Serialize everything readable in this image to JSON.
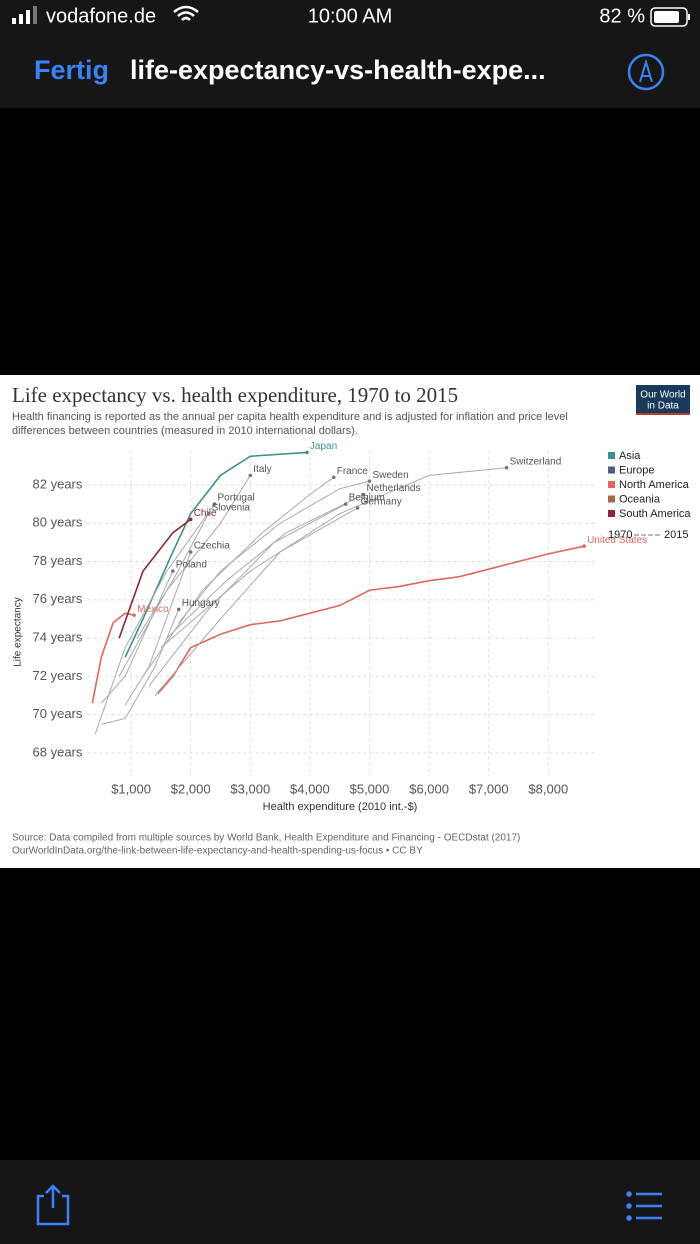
{
  "status_bar": {
    "carrier": "vodafone.de",
    "time": "10:00 AM",
    "battery": "82 %"
  },
  "nav_bar": {
    "done": "Fertig",
    "title": "life-expectancy-vs-health-expe..."
  },
  "chart_data": {
    "type": "line",
    "title": "Life expectancy vs. health expenditure, 1970 to 2015",
    "subtitle": [
      "Health financing is reported as the annual per capita health expenditure and is adjusted for inflation and price level",
      "differences between countries (measured in 2010 international dollars)."
    ],
    "logo": [
      "Our World",
      "in Data"
    ],
    "x_label": "Health expenditure (2010 int.-$)",
    "y_label": "Life expectancy",
    "source": [
      "Source: Data compiled from multiple sources by World Bank, Health Expenditure and Financing - OECDstat (2017)",
      "OurWorldInData.org/the-link-between-life-expectancy-and-health-spending-us-focus • CC BY"
    ],
    "xlim": [
      200,
      8800
    ],
    "ylim": [
      66.8,
      83.8
    ],
    "xticks": [
      {
        "value": 1000,
        "label": "$1,000"
      },
      {
        "value": 2000,
        "label": "$2,000"
      },
      {
        "value": 3000,
        "label": "$3,000"
      },
      {
        "value": 4000,
        "label": "$4,000"
      },
      {
        "value": 5000,
        "label": "$5,000"
      },
      {
        "value": 6000,
        "label": "$6,000"
      },
      {
        "value": 7000,
        "label": "$7,000"
      },
      {
        "value": 8000,
        "label": "$8,000"
      }
    ],
    "yticks": [
      {
        "value": 68,
        "label": "68 years"
      },
      {
        "value": 70,
        "label": "70 years"
      },
      {
        "value": 72,
        "label": "72 years"
      },
      {
        "value": 74,
        "label": "74 years"
      },
      {
        "value": 76,
        "label": "76 years"
      },
      {
        "value": 78,
        "label": "78 years"
      },
      {
        "value": 80,
        "label": "80 years"
      },
      {
        "value": 82,
        "label": "82 years"
      }
    ],
    "grid": true,
    "legend": {
      "position": "right",
      "items": [
        {
          "name": "Asia",
          "color": "#3d8f8f"
        },
        {
          "name": "Europe",
          "color": "#4f5b7d"
        },
        {
          "name": "North America",
          "color": "#e0675d"
        },
        {
          "name": "Oceania",
          "color": "#a5674a"
        },
        {
          "name": "South America",
          "color": "#8b2833"
        }
      ],
      "years": [
        "1970",
        "2015"
      ]
    },
    "series": [
      {
        "name": "United States",
        "color": "#e0675d",
        "x": [
          1450,
          1700,
          2000,
          2500,
          3000,
          3500,
          4000,
          4500,
          5000,
          5500,
          6000,
          6500,
          7000,
          7500,
          8000,
          8600
        ],
        "values": [
          71.1,
          72.0,
          73.5,
          74.2,
          74.7,
          74.9,
          75.3,
          75.7,
          76.5,
          76.7,
          77.0,
          77.2,
          77.6,
          78.0,
          78.4,
          78.8
        ]
      },
      {
        "name": "Japan",
        "color": "#3d8f8f",
        "x": [
          900,
          1200,
          1700,
          2000,
          2500,
          3000,
          3950
        ],
        "values": [
          73,
          75,
          78.5,
          80.5,
          82.5,
          83.5,
          83.7
        ]
      },
      {
        "name": "Mexico",
        "color": "#e0675d",
        "x": [
          350,
          500,
          700,
          900,
          1050
        ],
        "values": [
          70.6,
          73,
          74.8,
          75.3,
          75.2
        ]
      },
      {
        "name": "Chile",
        "color": "#8b2833",
        "x": [
          800,
          1200,
          1700,
          2000
        ],
        "values": [
          74,
          77.5,
          79.5,
          80.2
        ]
      },
      {
        "name": "Switzerland",
        "color": "#aaaaaa",
        "x": [
          1500,
          3000,
          4500,
          6000,
          7300
        ],
        "values": [
          73.5,
          77.5,
          80.5,
          82.5,
          82.9
        ]
      },
      {
        "name": "Sweden",
        "color": "#aaaaaa",
        "x": [
          1800,
          2500,
          3500,
          4500,
          5000
        ],
        "values": [
          74.8,
          77.5,
          80,
          81.8,
          82.2
        ]
      },
      {
        "name": "France",
        "color": "#aaaaaa",
        "x": [
          1200,
          2200,
          3200,
          4000,
          4400
        ],
        "values": [
          72,
          76.5,
          79.5,
          81.5,
          82.4
        ]
      },
      {
        "name": "Netherlands",
        "color": "#aaaaaa",
        "x": [
          1600,
          2600,
          3600,
          4900
        ],
        "values": [
          74,
          77,
          79.5,
          81.5
        ]
      },
      {
        "name": "Germany",
        "color": "#aaaaaa",
        "x": [
          1400,
          2500,
          3500,
          4800
        ],
        "values": [
          71,
          75,
          78.5,
          80.8
        ]
      },
      {
        "name": "Belgium",
        "color": "#aaaaaa",
        "x": [
          1300,
          2300,
          3400,
          4600
        ],
        "values": [
          71.5,
          75.5,
          79,
          81
        ]
      },
      {
        "name": "Italy",
        "color": "#aaaaaa",
        "x": [
          800,
          1600,
          2500,
          3000
        ],
        "values": [
          72,
          76.5,
          80,
          82.5
        ]
      },
      {
        "name": "Portugal",
        "color": "#aaaaaa",
        "x": [
          400,
          900,
          1600,
          2400
        ],
        "values": [
          69,
          73.5,
          77.5,
          81
        ]
      },
      {
        "name": "Slovenia",
        "color": "#aaaaaa",
        "x": [
          1100,
          1700,
          2300
        ],
        "values": [
          74,
          77,
          80.5
        ]
      },
      {
        "name": "Czechia",
        "color": "#aaaaaa",
        "x": [
          900,
          1300,
          2000
        ],
        "values": [
          70.5,
          72.5,
          78.5
        ]
      },
      {
        "name": "Poland",
        "color": "#aaaaaa",
        "x": [
          500,
          900,
          1700
        ],
        "values": [
          70.6,
          72,
          77.5
        ]
      },
      {
        "name": "Hungary",
        "color": "#aaaaaa",
        "x": [
          500,
          900,
          1400,
          1800
        ],
        "values": [
          69.5,
          69.8,
          72.5,
          75.5
        ]
      }
    ]
  }
}
